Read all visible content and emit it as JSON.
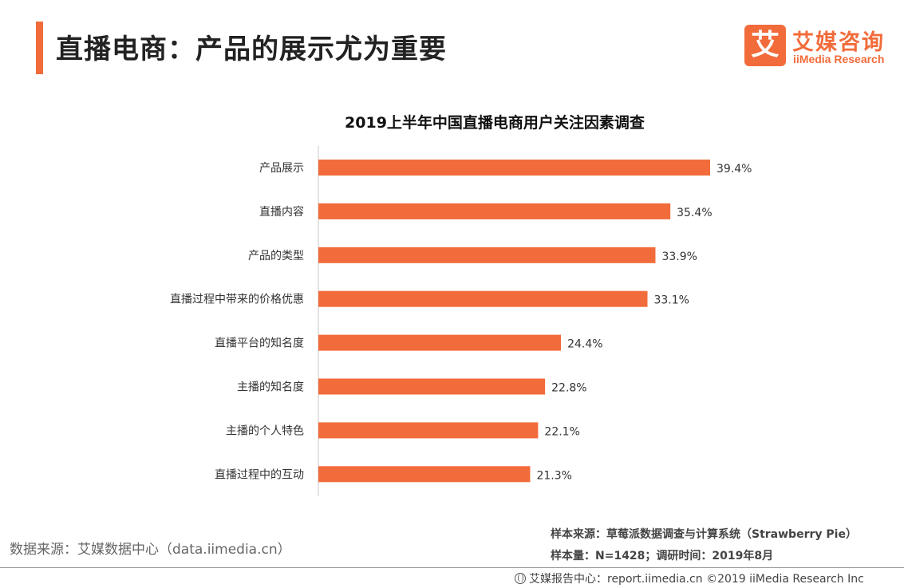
{
  "header": {
    "title": "直播电商：产品的展示尤为重要"
  },
  "logo": {
    "mark": "艾",
    "cn": "艾媒咨询",
    "en": "iiMedia Research"
  },
  "colors": {
    "accent": "#f26b3a",
    "bar": "#f26b3a"
  },
  "chart_data": {
    "type": "bar",
    "orientation": "horizontal",
    "title": "2019上半年中国直播电商用户关注因素调查",
    "categories": [
      "产品展示",
      "直播内容",
      "产品的类型",
      "直播过程中带来的价格优惠",
      "直播平台的知名度",
      "主播的知名度",
      "主播的个人特色",
      "直播过程中的互动"
    ],
    "values": [
      39.4,
      35.4,
      33.9,
      33.1,
      24.4,
      22.8,
      22.1,
      21.3
    ],
    "value_labels": [
      "39.4%",
      "35.4%",
      "33.9%",
      "33.1%",
      "24.4%",
      "22.8%",
      "22.1%",
      "21.3%"
    ],
    "unit": "%",
    "xlim": [
      0,
      40
    ],
    "grid": false,
    "legend": "none"
  },
  "footnotes": {
    "data_source": "数据来源：艾媒数据中心（data.iimedia.cn）",
    "sample_source": "样本来源：草莓派数据调查与计算系统（Strawberry  Pie）",
    "sample_size": "样本量：N=1428；调研时间：2019年8月"
  },
  "footer": {
    "text": "艾媒报告中心：report.iimedia.cn  ©2019  iiMedia Research  Inc"
  }
}
